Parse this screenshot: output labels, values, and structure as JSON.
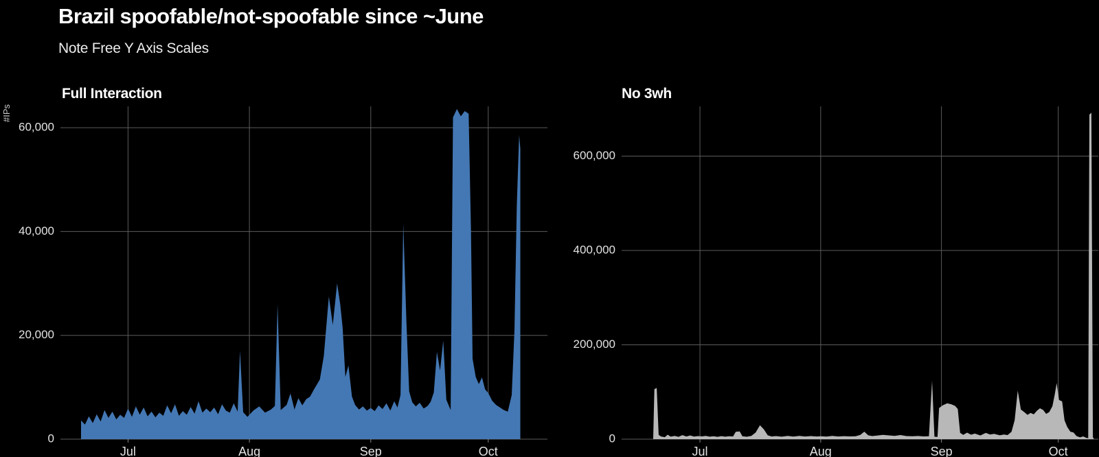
{
  "page": {
    "title": "Brazil spoofable/not-spoofable since ~June",
    "subtitle": "Note Free Y Axis Scales",
    "background": "#000000",
    "text_color": "#ffffff",
    "grid_color": "#5c5c5c",
    "tick_label_color": "#e3e3e3"
  },
  "chart_data": [
    {
      "type": "area",
      "title": "Full Interaction",
      "ylabel": "#IPs",
      "fill_color": "#4478b4",
      "x_unit": "days since Jun 19",
      "x_range_note": "~Jun 19 to ~Oct 9",
      "grid": "on",
      "legend": "none",
      "x_ticks": [
        {
          "day": 12,
          "label": "Jul"
        },
        {
          "day": 43,
          "label": "Aug"
        },
        {
          "day": 74,
          "label": "Sep"
        },
        {
          "day": 104,
          "label": "Oct"
        }
      ],
      "y_ticks": [
        {
          "value": 0,
          "label": "0"
        },
        {
          "value": 20000,
          "label": "20,000"
        },
        {
          "value": 40000,
          "label": "40,000"
        },
        {
          "value": 60000,
          "label": "60,000"
        }
      ],
      "ylim": [
        0,
        64000
      ],
      "points": [
        [
          0,
          3600
        ],
        [
          1,
          2800
        ],
        [
          2,
          4400
        ],
        [
          3,
          3100
        ],
        [
          4,
          4800
        ],
        [
          5,
          3400
        ],
        [
          6,
          5600
        ],
        [
          7,
          4100
        ],
        [
          8,
          5300
        ],
        [
          9,
          3800
        ],
        [
          10,
          4700
        ],
        [
          11,
          4100
        ],
        [
          12,
          5900
        ],
        [
          13,
          4300
        ],
        [
          14,
          6300
        ],
        [
          15,
          4700
        ],
        [
          16,
          6100
        ],
        [
          17,
          4400
        ],
        [
          18,
          5300
        ],
        [
          19,
          4200
        ],
        [
          20,
          5100
        ],
        [
          21,
          4500
        ],
        [
          22,
          6500
        ],
        [
          23,
          5000
        ],
        [
          24,
          6700
        ],
        [
          25,
          4500
        ],
        [
          26,
          5400
        ],
        [
          27,
          4700
        ],
        [
          28,
          6200
        ],
        [
          29,
          4900
        ],
        [
          30,
          7300
        ],
        [
          31,
          5100
        ],
        [
          32,
          5900
        ],
        [
          33,
          5200
        ],
        [
          34,
          6100
        ],
        [
          35,
          4800
        ],
        [
          36,
          6700
        ],
        [
          37,
          5500
        ],
        [
          38,
          5100
        ],
        [
          39,
          6900
        ],
        [
          40,
          5300
        ],
        [
          40.6,
          17000
        ],
        [
          41.4,
          5200
        ],
        [
          42.5,
          4300
        ],
        [
          44,
          5500
        ],
        [
          45.5,
          6300
        ],
        [
          47,
          5100
        ],
        [
          48.5,
          5700
        ],
        [
          49.5,
          6400
        ],
        [
          50.2,
          26000
        ],
        [
          51,
          5600
        ],
        [
          52.5,
          6600
        ],
        [
          53.5,
          8800
        ],
        [
          54.5,
          5700
        ],
        [
          55.5,
          7900
        ],
        [
          56.5,
          6500
        ],
        [
          57.5,
          7700
        ],
        [
          58.5,
          8200
        ],
        [
          59.5,
          9600
        ],
        [
          61,
          11500
        ],
        [
          62,
          16000
        ],
        [
          63.3,
          27500
        ],
        [
          64.3,
          22000
        ],
        [
          65.4,
          30000
        ],
        [
          66.2,
          26000
        ],
        [
          66.8,
          21500
        ],
        [
          67.5,
          12000
        ],
        [
          68.3,
          14200
        ],
        [
          69.2,
          8200
        ],
        [
          70,
          6600
        ],
        [
          71,
          5700
        ],
        [
          72,
          6300
        ],
        [
          73,
          5500
        ],
        [
          74,
          6000
        ],
        [
          75,
          5400
        ],
        [
          76,
          6500
        ],
        [
          77,
          5800
        ],
        [
          78,
          6900
        ],
        [
          79,
          5500
        ],
        [
          80,
          7300
        ],
        [
          80.8,
          6100
        ],
        [
          81.6,
          8500
        ],
        [
          82.3,
          41500
        ],
        [
          83.1,
          22500
        ],
        [
          83.8,
          9200
        ],
        [
          84.6,
          7100
        ],
        [
          85.5,
          6300
        ],
        [
          86.5,
          7000
        ],
        [
          87.5,
          5900
        ],
        [
          88.5,
          6400
        ],
        [
          89.3,
          7200
        ],
        [
          90.1,
          9000
        ],
        [
          90.9,
          16800
        ],
        [
          91.7,
          13200
        ],
        [
          92.5,
          19000
        ],
        [
          93.3,
          7600
        ],
        [
          94.4,
          5600
        ],
        [
          95,
          62000
        ],
        [
          96,
          63600
        ],
        [
          97,
          62200
        ],
        [
          98,
          63200
        ],
        [
          99,
          62700
        ],
        [
          99.6,
          40000
        ],
        [
          100,
          15500
        ],
        [
          100.8,
          12000
        ],
        [
          101.6,
          10600
        ],
        [
          102.4,
          11900
        ],
        [
          103.2,
          9600
        ],
        [
          104,
          8900
        ],
        [
          105,
          7400
        ],
        [
          106,
          6600
        ],
        [
          107,
          6100
        ],
        [
          108,
          5600
        ],
        [
          109,
          5300
        ],
        [
          110,
          8500
        ],
        [
          110.7,
          21000
        ],
        [
          111.3,
          45000
        ],
        [
          111.9,
          58600
        ],
        [
          112.2,
          56000
        ]
      ]
    },
    {
      "type": "area",
      "title": "No 3wh",
      "ylabel": "",
      "fill_color": "#b8b8b8",
      "x_unit": "days since Jun 19",
      "x_range_note": "~Jun 19 to ~Oct 10",
      "grid": "on",
      "legend": "none",
      "x_ticks": [
        {
          "day": 12,
          "label": "Jul"
        },
        {
          "day": 43,
          "label": "Aug"
        },
        {
          "day": 74,
          "label": "Sep"
        },
        {
          "day": 104,
          "label": "Oct"
        }
      ],
      "y_ticks": [
        {
          "value": 0,
          "label": "0"
        },
        {
          "value": 200000,
          "label": "200,000"
        },
        {
          "value": 400000,
          "label": "400,000"
        },
        {
          "value": 600000,
          "label": "600,000"
        }
      ],
      "ylim": [
        0,
        705000
      ],
      "points": [
        [
          0,
          1800
        ],
        [
          0.3,
          106000
        ],
        [
          0.9,
          108500
        ],
        [
          1.4,
          9000
        ],
        [
          2,
          5600
        ],
        [
          3,
          4200
        ],
        [
          3.7,
          9500
        ],
        [
          4.5,
          5200
        ],
        [
          5.5,
          6800
        ],
        [
          6.5,
          5000
        ],
        [
          7.5,
          8600
        ],
        [
          8.5,
          5600
        ],
        [
          9.5,
          7800
        ],
        [
          10.5,
          5400
        ],
        [
          11.5,
          6600
        ],
        [
          12.5,
          5800
        ],
        [
          13.5,
          6800
        ],
        [
          14.5,
          5200
        ],
        [
          15.5,
          6200
        ],
        [
          16.5,
          5000
        ],
        [
          17.5,
          6400
        ],
        [
          18.5,
          5300
        ],
        [
          19.5,
          6100
        ],
        [
          20.5,
          5600
        ],
        [
          21.2,
          15500
        ],
        [
          22.2,
          16500
        ],
        [
          22.9,
          6200
        ],
        [
          24,
          5100
        ],
        [
          25.2,
          6800
        ],
        [
          26.3,
          14000
        ],
        [
          27.4,
          29500
        ],
        [
          28.4,
          21000
        ],
        [
          29.4,
          8200
        ],
        [
          30.4,
          5600
        ],
        [
          31.5,
          6600
        ],
        [
          33,
          5200
        ],
        [
          34.5,
          7000
        ],
        [
          36,
          5500
        ],
        [
          37.5,
          6800
        ],
        [
          39,
          5600
        ],
        [
          40.5,
          6600
        ],
        [
          42,
          5700
        ],
        [
          43,
          6300
        ],
        [
          44.5,
          5500
        ],
        [
          46,
          6900
        ],
        [
          47.5,
          5700
        ],
        [
          49,
          6400
        ],
        [
          50.5,
          5800
        ],
        [
          52,
          6200
        ],
        [
          53.2,
          9200
        ],
        [
          54.2,
          15800
        ],
        [
          55.2,
          8200
        ],
        [
          56.2,
          6600
        ],
        [
          57.5,
          7600
        ],
        [
          59,
          9200
        ],
        [
          60.5,
          8000
        ],
        [
          62,
          7000
        ],
        [
          63.5,
          8800
        ],
        [
          65,
          6600
        ],
        [
          66.5,
          6200
        ],
        [
          68,
          6700
        ],
        [
          69.5,
          5800
        ],
        [
          70.8,
          6300
        ],
        [
          71.6,
          124000
        ],
        [
          72.2,
          5200
        ],
        [
          73,
          4600
        ],
        [
          73.4,
          66000
        ],
        [
          74.4,
          72000
        ],
        [
          75.5,
          76000
        ],
        [
          76.5,
          74000
        ],
        [
          77.5,
          70500
        ],
        [
          78.2,
          64000
        ],
        [
          78.8,
          13500
        ],
        [
          79.6,
          9200
        ],
        [
          80.6,
          13800
        ],
        [
          81.6,
          9400
        ],
        [
          82.6,
          11800
        ],
        [
          84,
          7800
        ],
        [
          85.4,
          13200
        ],
        [
          86.5,
          9800
        ],
        [
          87.5,
          11200
        ],
        [
          89,
          8200
        ],
        [
          90,
          9800
        ],
        [
          91,
          8800
        ],
        [
          92,
          15500
        ],
        [
          92.8,
          40000
        ],
        [
          93.6,
          103000
        ],
        [
          94.4,
          63000
        ],
        [
          95.3,
          57000
        ],
        [
          96.1,
          51500
        ],
        [
          96.9,
          55500
        ],
        [
          97.7,
          52500
        ],
        [
          98.5,
          60000
        ],
        [
          99.3,
          65500
        ],
        [
          100.1,
          62000
        ],
        [
          100.9,
          53500
        ],
        [
          101.7,
          57500
        ],
        [
          102.5,
          70000
        ],
        [
          103.1,
          95000
        ],
        [
          103.6,
          119000
        ],
        [
          104.2,
          83000
        ],
        [
          105,
          80000
        ],
        [
          105.6,
          40000
        ],
        [
          106.3,
          26000
        ],
        [
          107.1,
          15800
        ],
        [
          107.9,
          14200
        ],
        [
          108.7,
          6500
        ],
        [
          109.6,
          3800
        ],
        [
          110.4,
          5800
        ],
        [
          111.2,
          2800
        ],
        [
          111.7,
          2200
        ],
        [
          112,
          688000
        ],
        [
          112.5,
          692000
        ],
        [
          112.9,
          4000
        ],
        [
          113.1,
          1500
        ]
      ]
    }
  ]
}
